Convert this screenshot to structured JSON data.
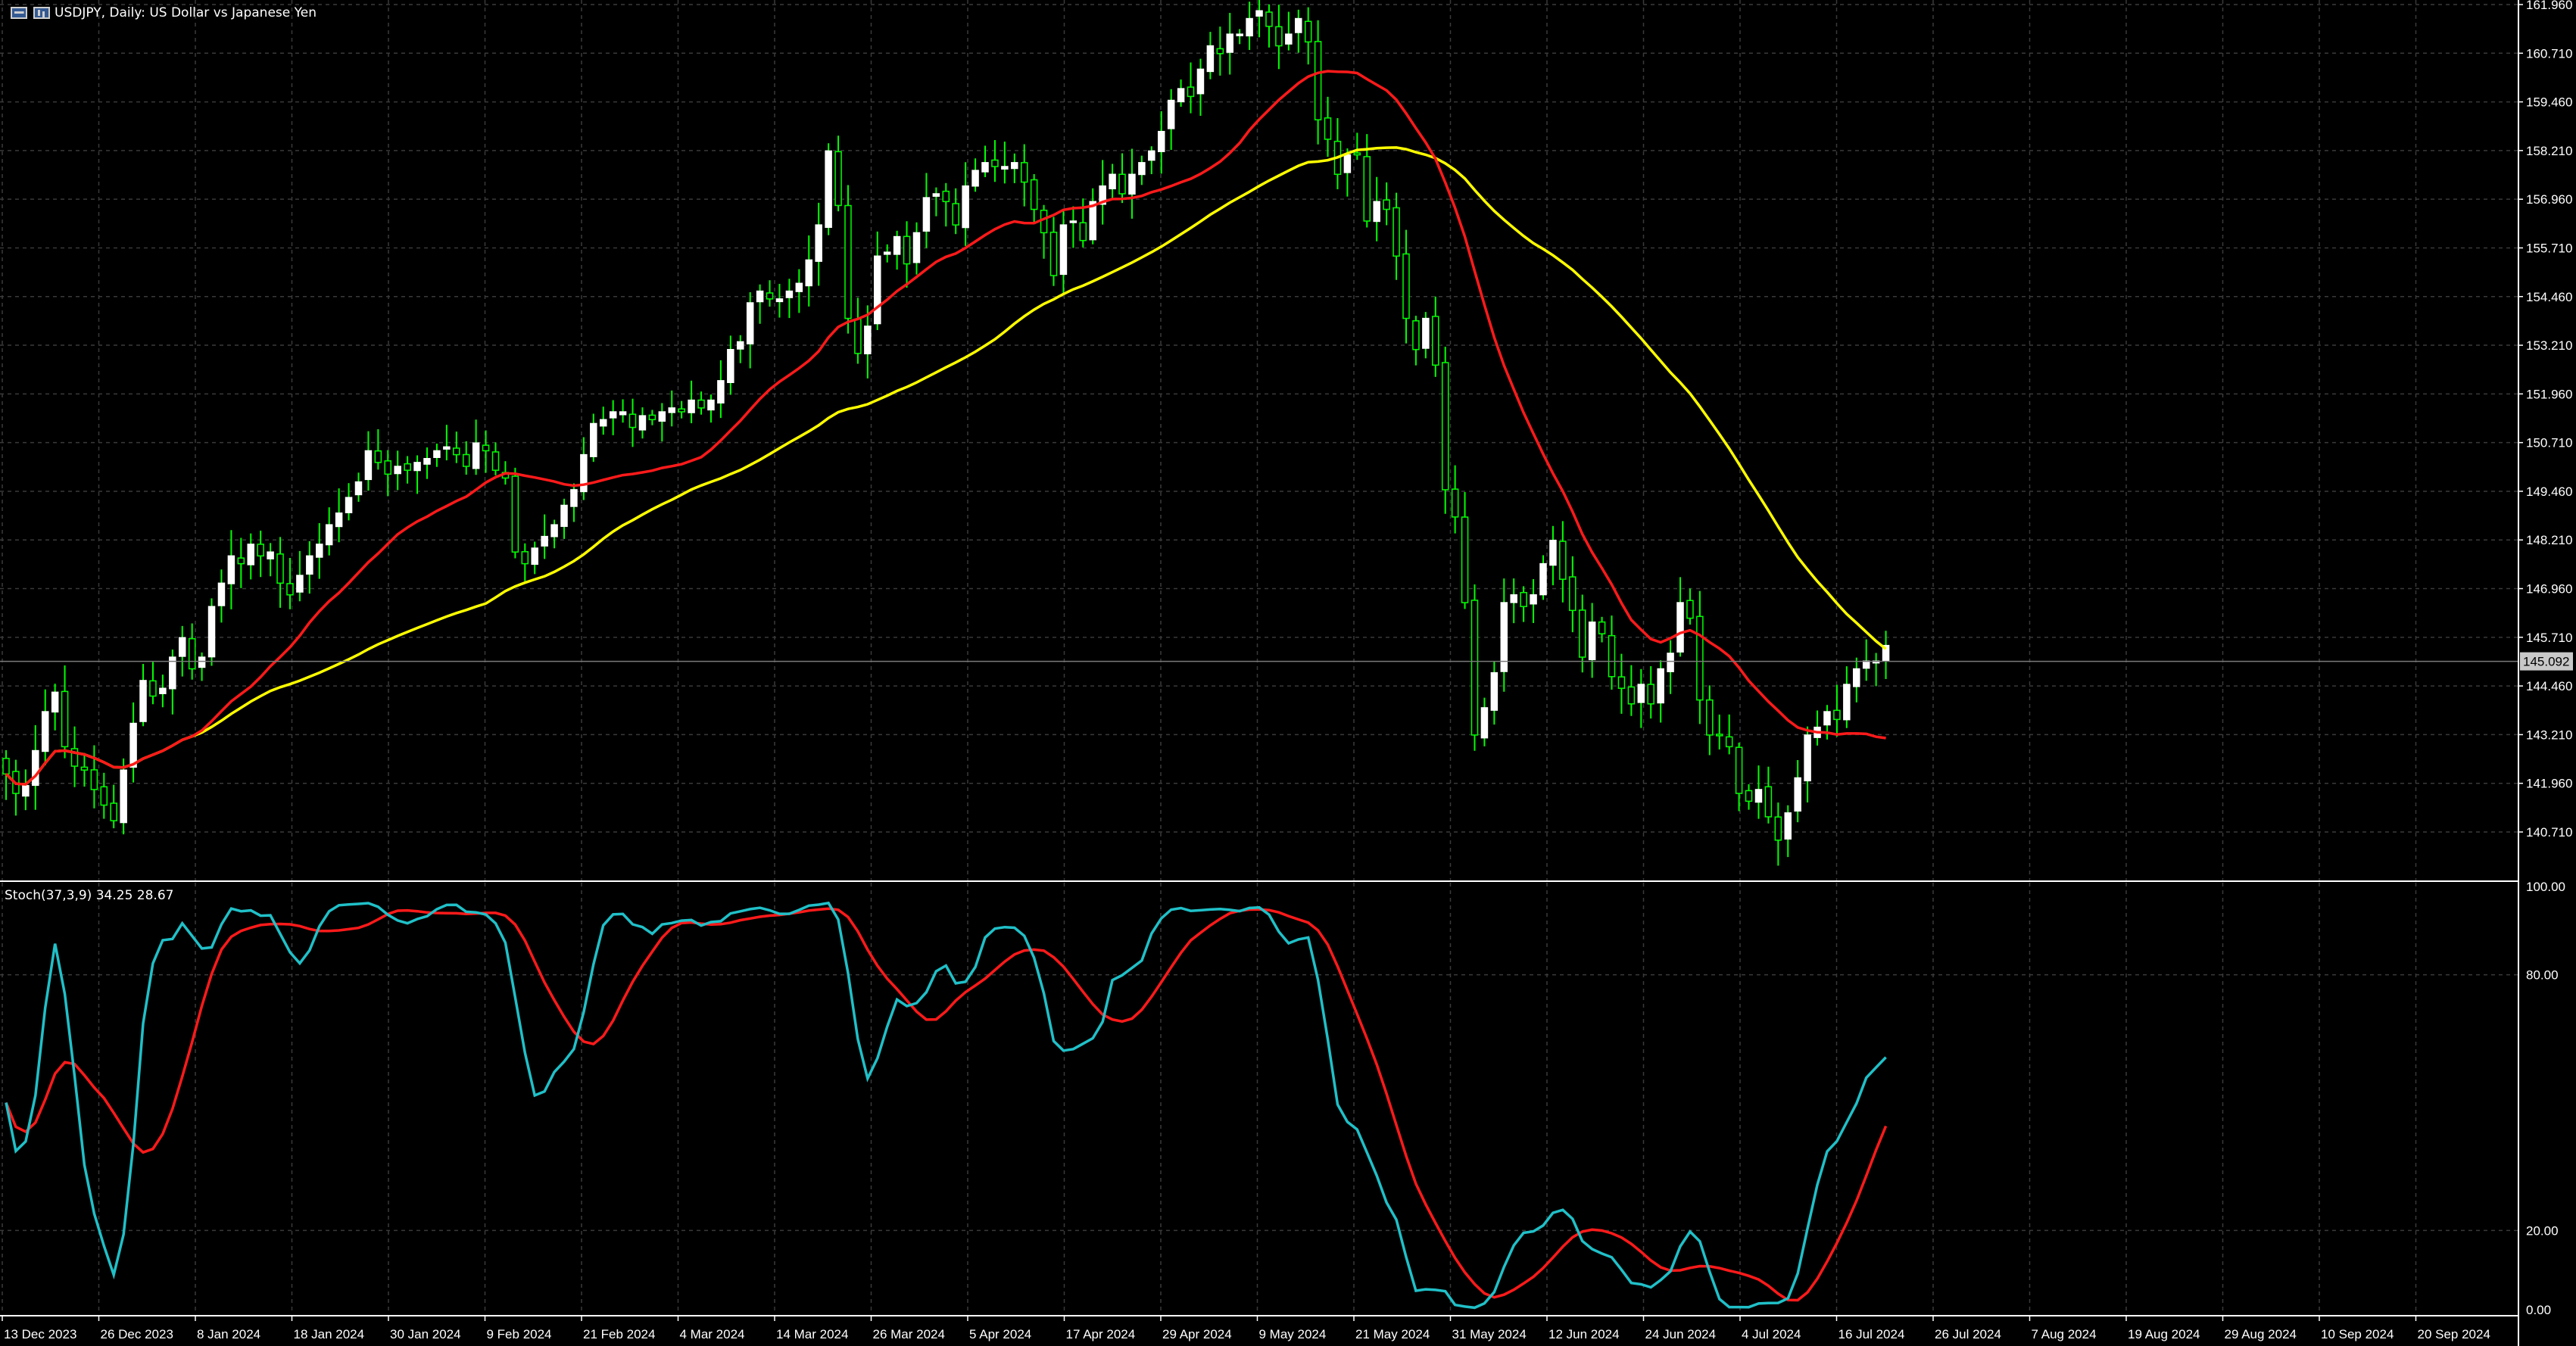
{
  "header": {
    "title": "USDJPY, Daily:  US Dollar vs Japanese Yen",
    "indicator_label": "Stoch(37,3,9) 34.25 28.67"
  },
  "colors": {
    "background": "#000000",
    "grid": "#3a3a3a",
    "bull_candle": "#ffffff",
    "bear_candle": "#000000",
    "wick": "#00ff00",
    "ma_fast": "#ff1a1a",
    "ma_slow": "#ffff00",
    "stoch_main": "#20c0c8",
    "stoch_signal": "#ff1a1a",
    "price_line": "#7a7a7a",
    "price_tag": "#c8c8c8"
  },
  "chart_data": [
    {
      "type": "candlestick",
      "symbol": "USDJPY",
      "timeframe": "Daily",
      "ylim": [
        139.9,
        162.1
      ],
      "y_ticks": [
        "161.960",
        "160.710",
        "159.460",
        "158.210",
        "156.960",
        "155.710",
        "154.460",
        "153.210",
        "151.960",
        "150.710",
        "149.460",
        "148.210",
        "146.960",
        "145.710",
        "144.460",
        "143.210",
        "141.960",
        "140.710"
      ],
      "current_price": "145.092",
      "x_labels": [
        "13 Dec 2023",
        "26 Dec 2023",
        "8 Jan 2024",
        "18 Jan 2024",
        "30 Jan 2024",
        "9 Feb 2024",
        "21 Feb 2024",
        "4 Mar 2024",
        "14 Mar 2024",
        "26 Mar 2024",
        "5 Apr 2024",
        "17 Apr 2024",
        "29 Apr 2024",
        "9 May 2024",
        "21 May 2024",
        "31 May 2024",
        "12 Jun 2024",
        "24 Jun 2024",
        "4 Jul 2024",
        "16 Jul 2024",
        "26 Jul 2024",
        "7 Aug 2024",
        "19 Aug 2024",
        "29 Aug 2024",
        "10 Sep 2024",
        "20 Sep 2024"
      ],
      "closes": [
        142.2,
        141.7,
        141.9,
        142.8,
        143.8,
        144.3,
        142.9,
        142.4,
        142.3,
        141.8,
        141.4,
        141.0,
        142.3,
        143.5,
        144.6,
        144.2,
        144.4,
        145.2,
        145.7,
        144.9,
        145.2,
        146.5,
        147.1,
        147.8,
        147.6,
        148.1,
        147.8,
        147.9,
        147.1,
        146.8,
        147.3,
        147.8,
        148.1,
        148.6,
        148.9,
        149.3,
        149.7,
        150.5,
        150.2,
        149.9,
        150.1,
        150.0,
        150.2,
        150.3,
        150.5,
        150.6,
        150.4,
        150.1,
        150.7,
        150.5,
        150.0,
        149.8,
        147.9,
        147.6,
        148.0,
        148.3,
        148.6,
        149.1,
        149.5,
        150.4,
        151.2,
        151.3,
        151.5,
        151.5,
        151.1,
        151.4,
        151.3,
        151.5,
        151.6,
        151.5,
        151.8,
        151.6,
        151.8,
        152.3,
        153.1,
        153.3,
        154.3,
        154.6,
        154.4,
        154.4,
        154.6,
        154.8,
        155.4,
        156.3,
        158.2,
        156.8,
        153.9,
        153.0,
        153.7,
        155.5,
        155.6,
        156.0,
        155.3,
        156.1,
        157.0,
        157.1,
        156.9,
        156.3,
        157.3,
        157.7,
        157.9,
        157.8,
        157.8,
        157.9,
        157.4,
        156.7,
        156.1,
        155.0,
        156.3,
        156.4,
        155.9,
        156.9,
        157.3,
        157.6,
        157.1,
        157.6,
        157.9,
        158.2,
        158.7,
        159.5,
        159.8,
        159.6,
        160.3,
        160.9,
        160.7,
        161.2,
        161.2,
        161.6,
        161.8,
        161.4,
        160.9,
        161.2,
        161.6,
        161.0,
        159.0,
        158.5,
        157.6,
        158.1,
        158.1,
        156.4,
        156.9,
        156.7,
        155.5,
        153.9,
        153.1,
        153.9,
        152.7,
        149.5,
        148.8,
        146.6,
        143.2,
        143.9,
        144.8,
        146.6,
        146.8,
        146.5,
        146.8,
        147.6,
        148.2,
        147.2,
        146.4,
        145.2,
        146.1,
        145.8,
        144.7,
        144.4,
        144.0,
        144.5,
        144.0,
        144.9,
        145.3,
        146.6,
        146.2,
        144.1,
        143.2,
        143.2,
        142.9,
        141.7,
        141.5,
        141.8,
        141.1,
        140.5,
        141.2,
        142.1,
        143.2,
        143.4,
        143.8,
        143.6,
        144.5,
        144.9,
        145.1,
        145.1,
        145.5
      ]
    },
    {
      "type": "line",
      "name": "Stoch(37,3,9)",
      "ylim": [
        0,
        100
      ],
      "y_ticks": [
        "100.00",
        "80.00",
        "20.00",
        "0.00"
      ],
      "main_value": "34.25",
      "signal_value": "28.67"
    }
  ]
}
